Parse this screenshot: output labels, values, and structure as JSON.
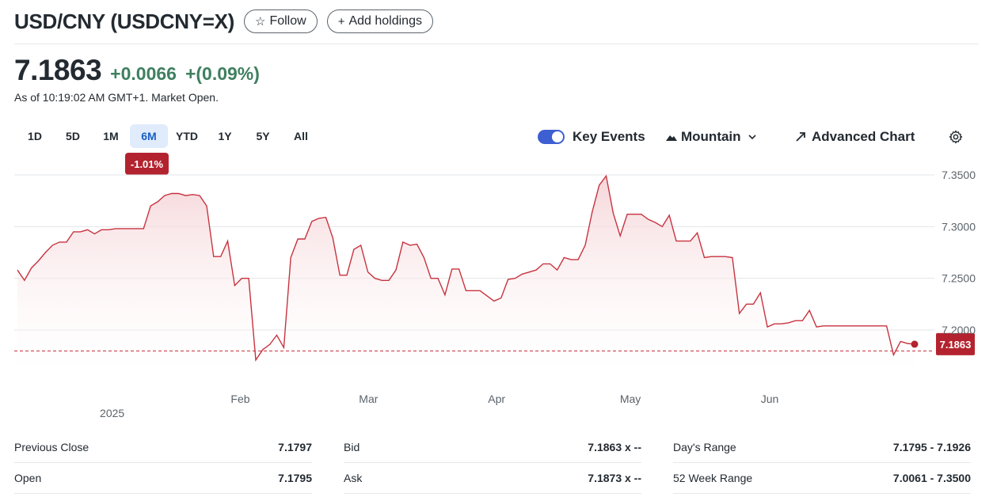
{
  "header": {
    "title": "USD/CNY (USDCNY=X)",
    "follow_icon": "star-outline-icon",
    "follow_label": "Follow",
    "add_icon": "plus-icon",
    "add_label": "Add holdings"
  },
  "quote": {
    "price": "7.1863",
    "change": "+0.0066",
    "change_pct": "+(0.09%)",
    "as_of": "As of 10:19:02 AM GMT+1. Market Open.",
    "up_color": "#3f7f60"
  },
  "ranges": {
    "items": [
      "1D",
      "5D",
      "1M",
      "6M",
      "YTD",
      "1Y",
      "5Y",
      "All"
    ],
    "selected": "6M",
    "selected_change": "-1.01%"
  },
  "toolbar": {
    "key_events_label": "Key Events",
    "key_events_on": true,
    "chart_type_icon": "mountain-icon",
    "chart_type_label": "Mountain",
    "advanced_icon": "expand-arrow-icon",
    "advanced_label": "Advanced Chart",
    "settings_icon": "gear-icon"
  },
  "chart_data": {
    "type": "area",
    "x_labels": [
      "Feb",
      "Mar",
      "Apr",
      "May",
      "Jun"
    ],
    "year_label": "2025",
    "y_ticks": [
      "7.3500",
      "7.3000",
      "7.2500",
      "7.2000"
    ],
    "ylim": [
      7.16,
      7.355
    ],
    "y_tick_values": [
      7.35,
      7.3,
      7.25,
      7.2
    ],
    "xlim": [
      0,
      161
    ],
    "x_label_positions": [
      40,
      63,
      86,
      110,
      135
    ],
    "year_position": 17,
    "values": [
      7.258,
      7.248,
      7.26,
      7.267,
      7.275,
      7.282,
      7.285,
      7.285,
      7.295,
      7.295,
      7.297,
      7.293,
      7.297,
      7.297,
      7.298,
      7.298,
      7.298,
      7.298,
      7.298,
      7.32,
      7.324,
      7.33,
      7.332,
      7.332,
      7.33,
      7.331,
      7.33,
      7.32,
      7.271,
      7.271,
      7.286,
      7.243,
      7.25,
      7.25,
      7.171,
      7.181,
      7.186,
      7.195,
      7.183,
      7.27,
      7.288,
      7.288,
      7.305,
      7.308,
      7.309,
      7.289,
      7.253,
      7.253,
      7.278,
      7.282,
      7.256,
      7.25,
      7.248,
      7.248,
      7.258,
      7.285,
      7.282,
      7.283,
      7.27,
      7.25,
      7.25,
      7.234,
      7.259,
      7.259,
      7.238,
      7.238,
      7.238,
      7.233,
      7.228,
      7.231,
      7.249,
      7.25,
      7.254,
      7.256,
      7.258,
      7.264,
      7.264,
      7.258,
      7.27,
      7.268,
      7.268,
      7.282,
      7.314,
      7.34,
      7.349,
      7.313,
      7.291,
      7.312,
      7.312,
      7.312,
      7.307,
      7.304,
      7.3,
      7.311,
      7.286,
      7.286,
      7.286,
      7.294,
      7.27,
      7.271,
      7.271,
      7.271,
      7.27,
      7.216,
      7.225,
      7.225,
      7.236,
      7.203,
      7.206,
      7.206,
      7.207,
      7.209,
      7.209,
      7.219,
      7.203,
      7.204,
      7.204,
      7.204,
      7.204,
      7.204,
      7.204,
      7.204,
      7.204,
      7.204,
      7.204,
      7.176,
      7.189,
      7.187,
      7.1863
    ],
    "last_value": 7.1863,
    "last_label": "7.1863",
    "previous_close": 7.1797,
    "line_color": "#c7333f",
    "fill_color": "#f4cfd3",
    "badge_color": "#b3232f"
  },
  "stats": {
    "left": [
      {
        "label": "Previous Close",
        "value": "7.1797"
      },
      {
        "label": "Open",
        "value": "7.1795"
      }
    ],
    "middle": [
      {
        "label": "Bid",
        "value": "7.1863 x --"
      },
      {
        "label": "Ask",
        "value": "7.1873 x --"
      }
    ],
    "right": [
      {
        "label": "Day's Range",
        "value": "7.1795 - 7.1926"
      },
      {
        "label": "52 Week Range",
        "value": "7.0061 - 7.3500"
      }
    ]
  }
}
